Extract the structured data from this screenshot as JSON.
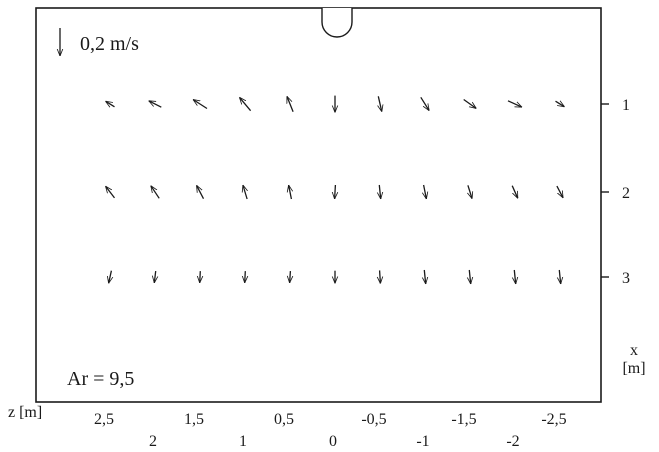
{
  "chart_data": {
    "type": "vector_field",
    "title": "",
    "scale_label": "0,2 m/s",
    "annotation": "Ar = 9,5",
    "xlabel": "z [m]",
    "ylabel_top": "x",
    "ylabel_unit": "[m]",
    "z_ticks_upper": [
      "2,5",
      "1,5",
      "0,5",
      "-0,5",
      "-1,5",
      "-2,5"
    ],
    "z_ticks_lower": [
      "2",
      "1",
      "0",
      "-1",
      "-2"
    ],
    "x_ticks": [
      "1",
      "2",
      "3"
    ],
    "x_tick_values": [
      1,
      2,
      3
    ],
    "z_positions": [
      2.5,
      2.0,
      1.5,
      1.0,
      0.5,
      0.0,
      -0.5,
      -1.0,
      -1.5,
      -2.0,
      -2.5
    ],
    "scale_vector_m_s": 0.2,
    "rows": [
      {
        "x": 1,
        "dz": [
          0.065,
          0.09,
          0.1,
          0.08,
          0.045,
          0.0,
          -0.025,
          -0.06,
          -0.09,
          -0.1,
          -0.065
        ],
        "dx": [
          -0.04,
          -0.045,
          -0.065,
          -0.095,
          -0.11,
          0.12,
          0.11,
          0.095,
          0.065,
          0.045,
          0.04
        ]
      },
      {
        "x": 2,
        "dz": [
          0.065,
          0.06,
          0.05,
          0.03,
          0.02,
          0.005,
          -0.01,
          -0.02,
          -0.03,
          -0.04,
          -0.045
        ],
        "dx": [
          -0.085,
          -0.09,
          -0.095,
          -0.1,
          -0.1,
          0.1,
          0.1,
          0.1,
          0.095,
          0.09,
          0.085
        ]
      },
      {
        "x": 3,
        "dz": [
          0.02,
          0.01,
          0.005,
          0.005,
          0.005,
          0.0,
          -0.005,
          -0.01,
          -0.01,
          -0.01,
          -0.01
        ],
        "dx": [
          0.09,
          0.085,
          0.085,
          0.085,
          0.085,
          0.09,
          0.095,
          0.1,
          0.1,
          0.1,
          0.1
        ]
      }
    ]
  }
}
